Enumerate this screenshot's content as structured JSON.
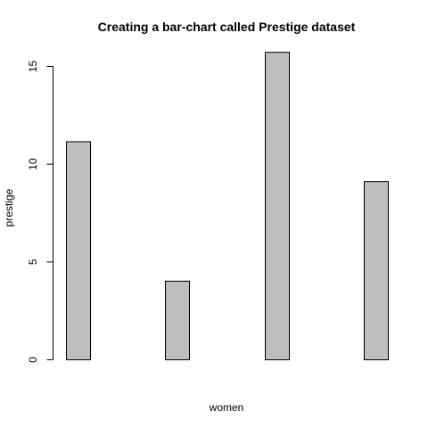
{
  "chart_data": {
    "type": "bar",
    "title": "Creating a bar-chart called Prestige dataset",
    "xlabel": "women",
    "ylabel": "prestige",
    "values": [
      11.15,
      4.02,
      15.72,
      9.11
    ],
    "ylim": [
      0,
      16.2
    ],
    "yticks": [
      {
        "value": 0,
        "label": "0"
      },
      {
        "value": 5,
        "label": "5"
      },
      {
        "value": 10,
        "label": "10"
      },
      {
        "value": 15,
        "label": "15"
      }
    ],
    "bar_color": "#bebebe",
    "border_color": "#000000",
    "grid": false
  }
}
